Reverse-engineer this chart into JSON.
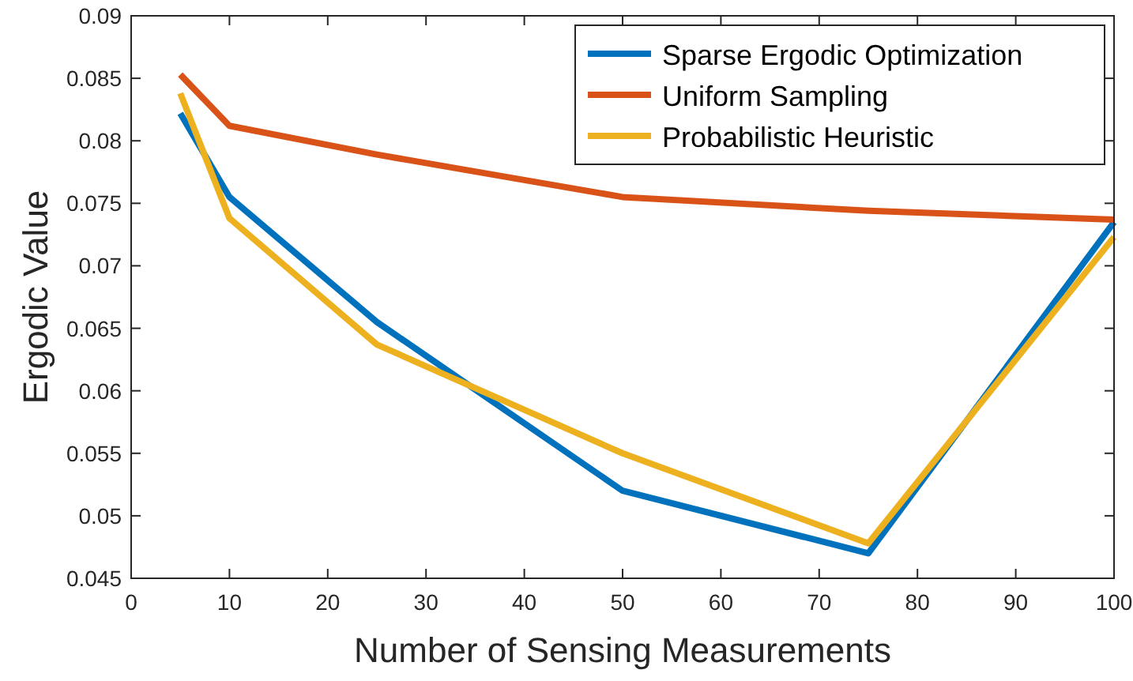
{
  "chart_data": {
    "type": "line",
    "xlabel": "Number of Sensing Measurements",
    "ylabel": "Ergodic Value",
    "x": [
      5,
      10,
      25,
      50,
      75,
      100
    ],
    "series": [
      {
        "name": "Sparse Ergodic Optimization",
        "color": "#0072bd",
        "values": [
          0.0822,
          0.0755,
          0.0655,
          0.052,
          0.047,
          0.0735
        ]
      },
      {
        "name": "Uniform Sampling",
        "color": "#d95319",
        "values": [
          0.0853,
          0.0812,
          0.0789,
          0.0755,
          0.0744,
          0.0737
        ]
      },
      {
        "name": "Probabilistic Heuristic",
        "color": "#edb120",
        "values": [
          0.0838,
          0.0738,
          0.0637,
          0.055,
          0.0478,
          0.0723
        ]
      }
    ],
    "xlim": [
      0,
      100
    ],
    "xticks": [
      0,
      10,
      20,
      30,
      40,
      50,
      60,
      70,
      80,
      90,
      100
    ],
    "ylim": [
      0.045,
      0.09
    ],
    "yticks": [
      0.045,
      0.05,
      0.055,
      0.06,
      0.065,
      0.07,
      0.075,
      0.08,
      0.085,
      0.09
    ],
    "legend": "top right",
    "grid": false,
    "marker": "none",
    "line_style": "solid"
  }
}
